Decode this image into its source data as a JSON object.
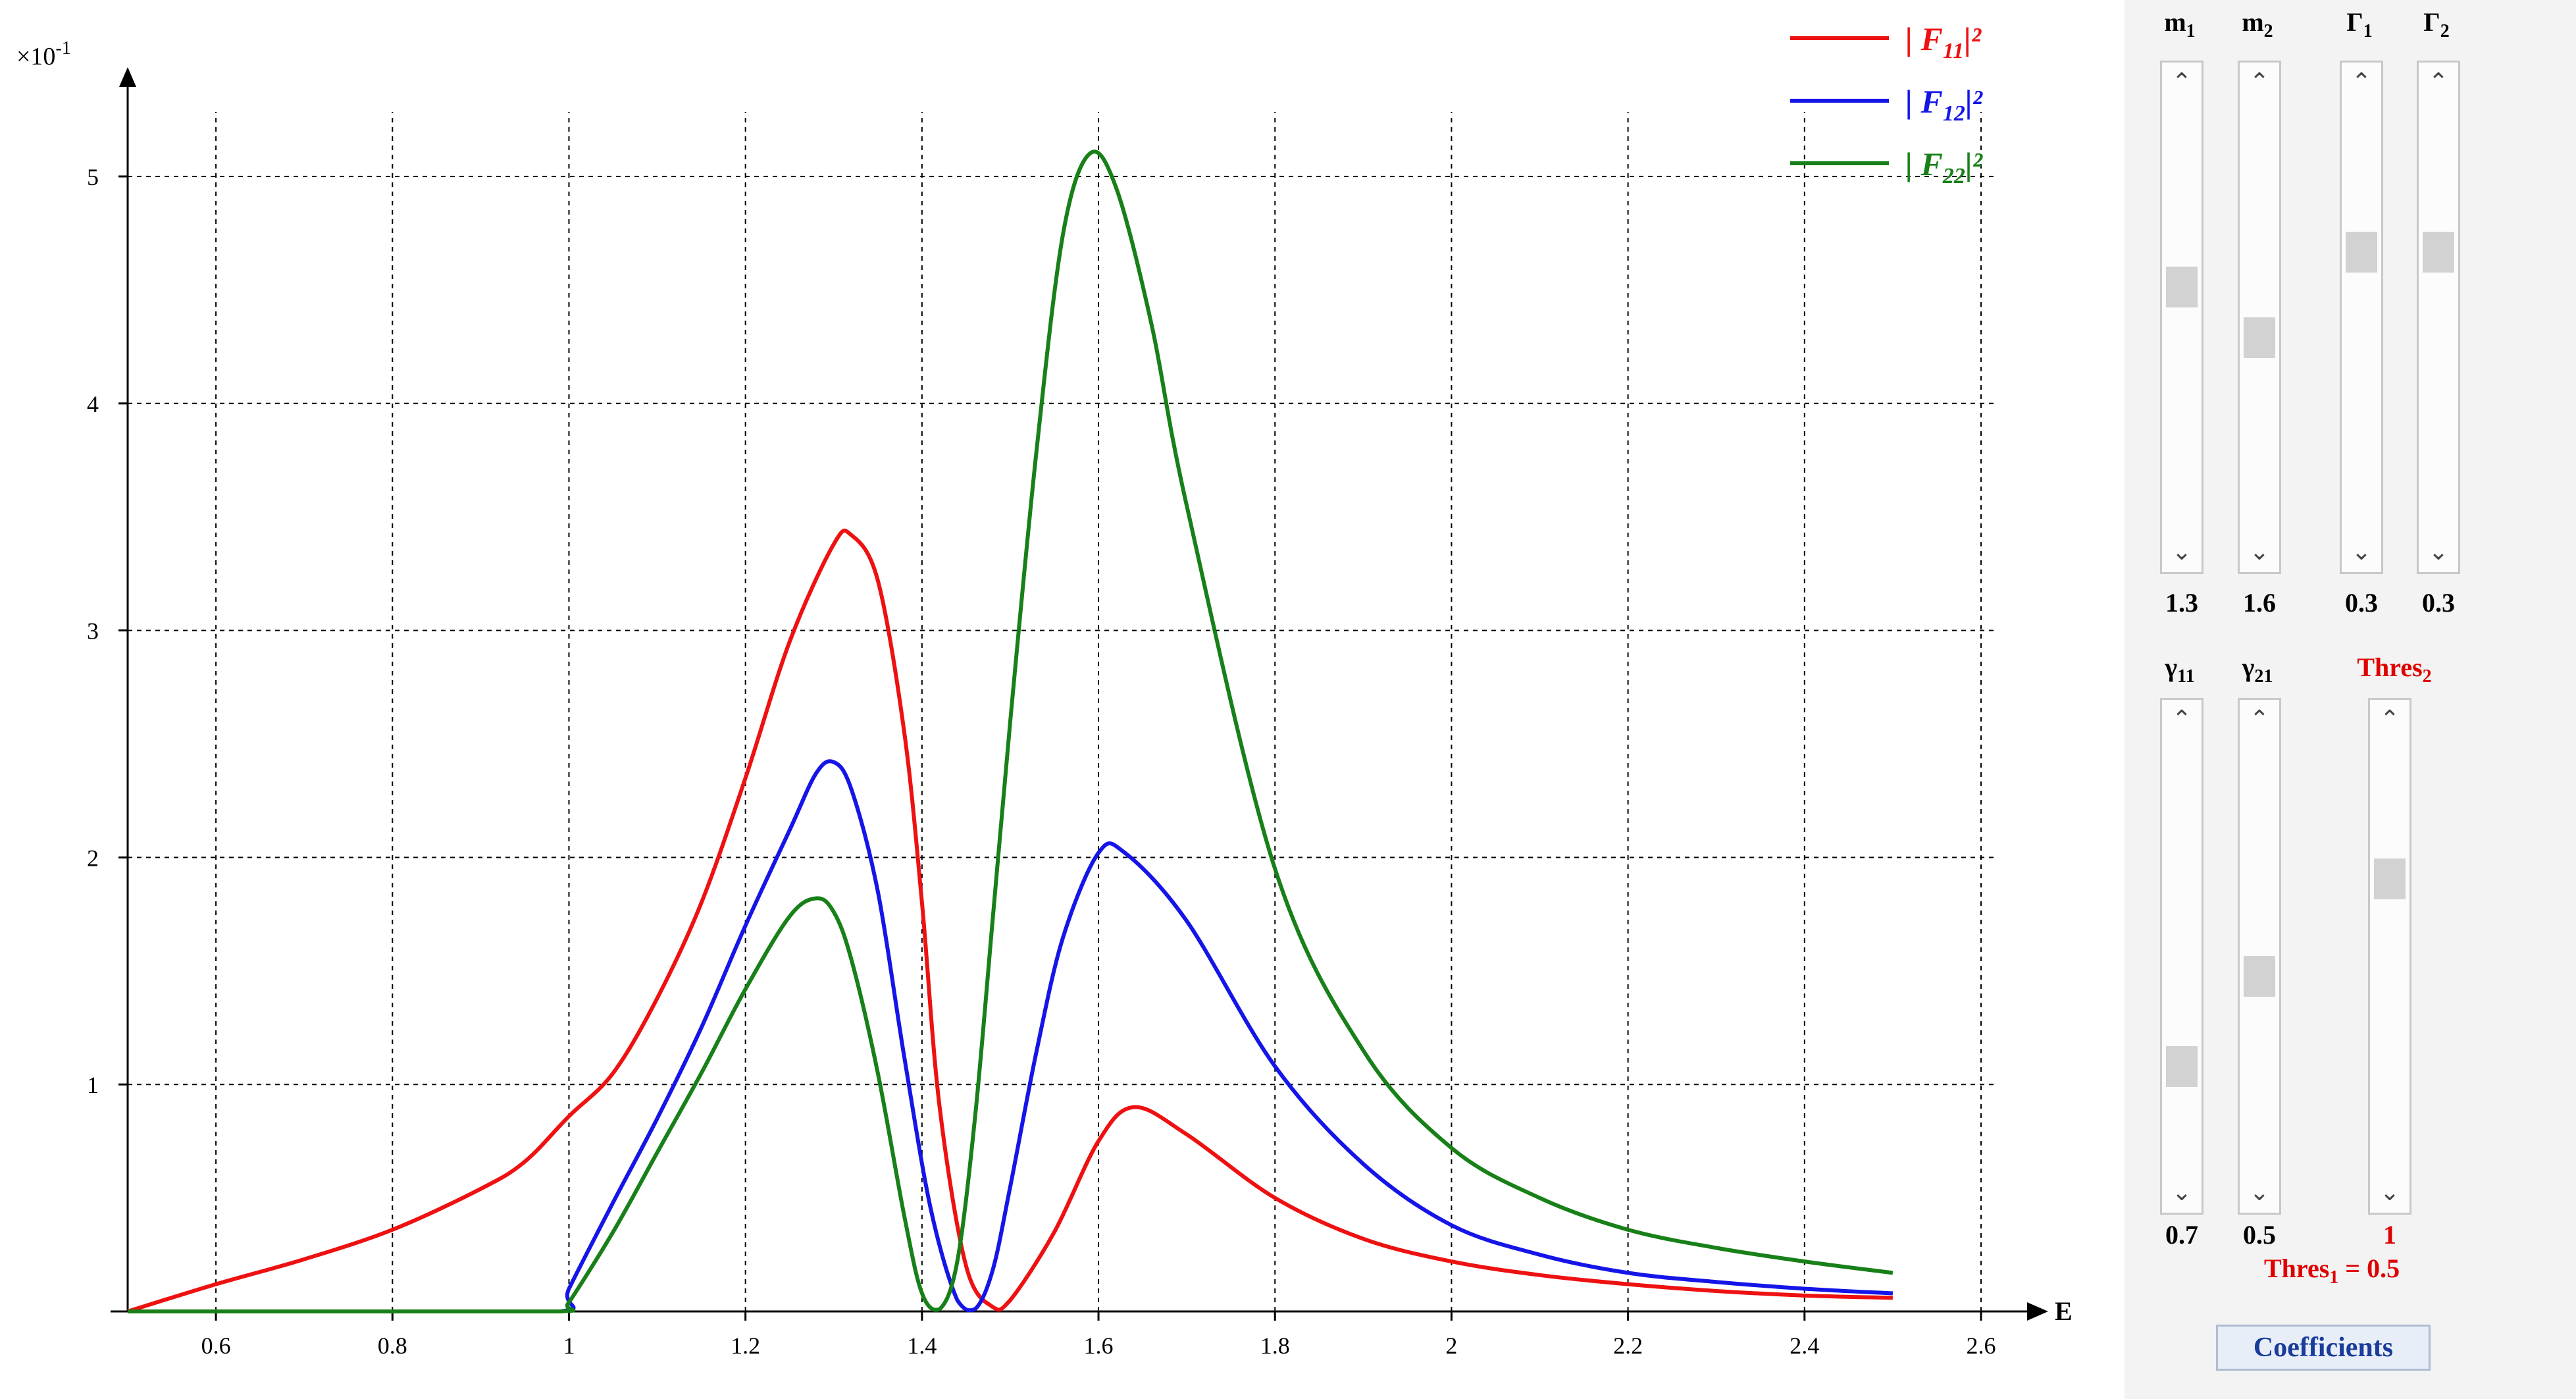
{
  "chart_data": {
    "type": "line",
    "title": "",
    "xlabel": "E",
    "ylabel": "",
    "y_multiplier_label": "×10",
    "y_multiplier_exp": "-1",
    "xlim": [
      0.5,
      2.6
    ],
    "ylim": [
      0,
      5.4
    ],
    "x_ticks": [
      "0.6",
      "0.8",
      "1",
      "1.2",
      "1.4",
      "1.6",
      "1.8",
      "2",
      "2.2",
      "2.4",
      "2.6"
    ],
    "y_ticks": [
      "1",
      "2",
      "3",
      "4",
      "5"
    ],
    "grid": true,
    "legend_position": "top-right",
    "series": [
      {
        "name": "|F11|²",
        "legend_pre": "| F",
        "legend_sub": "11",
        "legend_post": "|²",
        "color": "#ee1111",
        "x": [
          0.5,
          0.6,
          0.7,
          0.8,
          0.9,
          0.95,
          1.0,
          1.05,
          1.1,
          1.15,
          1.2,
          1.25,
          1.3,
          1.32,
          1.35,
          1.38,
          1.4,
          1.42,
          1.45,
          1.48,
          1.5,
          1.55,
          1.6,
          1.64,
          1.7,
          1.8,
          1.9,
          2.0,
          2.1,
          2.2,
          2.3,
          2.4,
          2.5
        ],
        "values": [
          0.0,
          0.12,
          0.23,
          0.36,
          0.54,
          0.66,
          0.86,
          1.05,
          1.38,
          1.8,
          2.35,
          2.95,
          3.38,
          3.42,
          3.22,
          2.55,
          1.8,
          0.9,
          0.2,
          0.02,
          0.05,
          0.35,
          0.75,
          0.9,
          0.78,
          0.5,
          0.32,
          0.22,
          0.16,
          0.12,
          0.09,
          0.07,
          0.06
        ]
      },
      {
        "name": "|F12|²",
        "legend_pre": "| F",
        "legend_sub": "12",
        "legend_post": "|²",
        "color": "#1515e8",
        "x": [
          0.5,
          0.8,
          0.99,
          1.0,
          1.05,
          1.1,
          1.15,
          1.2,
          1.25,
          1.28,
          1.3,
          1.32,
          1.35,
          1.38,
          1.41,
          1.44,
          1.46,
          1.48,
          1.5,
          1.53,
          1.56,
          1.6,
          1.63,
          1.7,
          1.8,
          1.9,
          2.0,
          2.1,
          2.2,
          2.3,
          2.4,
          2.5
        ],
        "values": [
          0,
          0,
          0,
          0.1,
          0.48,
          0.85,
          1.25,
          1.7,
          2.12,
          2.37,
          2.42,
          2.3,
          1.85,
          1.12,
          0.45,
          0.05,
          0.01,
          0.18,
          0.55,
          1.15,
          1.65,
          2.02,
          2.02,
          1.72,
          1.08,
          0.65,
          0.38,
          0.25,
          0.17,
          0.13,
          0.1,
          0.08
        ]
      },
      {
        "name": "|F22|²",
        "legend_pre": "| F",
        "legend_sub": "22",
        "legend_post": "|²",
        "color": "#188018",
        "x": [
          0.5,
          0.8,
          0.99,
          1.0,
          1.05,
          1.1,
          1.15,
          1.2,
          1.25,
          1.28,
          1.3,
          1.32,
          1.35,
          1.38,
          1.4,
          1.42,
          1.44,
          1.46,
          1.48,
          1.5,
          1.53,
          1.56,
          1.59,
          1.62,
          1.66,
          1.7,
          1.8,
          1.9,
          2.0,
          2.1,
          2.2,
          2.3,
          2.4,
          2.5
        ],
        "values": [
          0,
          0,
          0,
          0.04,
          0.35,
          0.7,
          1.05,
          1.42,
          1.74,
          1.82,
          1.76,
          1.55,
          1.05,
          0.42,
          0.08,
          0.01,
          0.22,
          0.85,
          1.72,
          2.6,
          3.8,
          4.75,
          5.1,
          4.95,
          4.35,
          3.55,
          1.95,
          1.15,
          0.72,
          0.5,
          0.36,
          0.28,
          0.22,
          0.17
        ]
      }
    ]
  },
  "controls": {
    "sliders_top": [
      {
        "label": "m",
        "sub": "1",
        "value": "1.3",
        "pos": 0.42
      },
      {
        "label": "m",
        "sub": "2",
        "value": "1.6",
        "pos": 0.55
      },
      {
        "label": "Γ",
        "sub": "1",
        "value": "0.3",
        "pos": 0.33
      },
      {
        "label": "Γ",
        "sub": "2",
        "value": "0.3",
        "pos": 0.33
      }
    ],
    "sliders_bottom": [
      {
        "label": "γ",
        "sub": "11",
        "value": "0.7",
        "pos": 0.78
      },
      {
        "label": "γ",
        "sub": "21",
        "value": "0.5",
        "pos": 0.55
      },
      {
        "label": "Thres",
        "sub": "2",
        "value": "1",
        "pos": 0.3
      }
    ],
    "thres1_label": "Thres",
    "thres1_sub": "1",
    "thres1_value": "= 0.5",
    "coefficients_button": "Coefficients"
  }
}
